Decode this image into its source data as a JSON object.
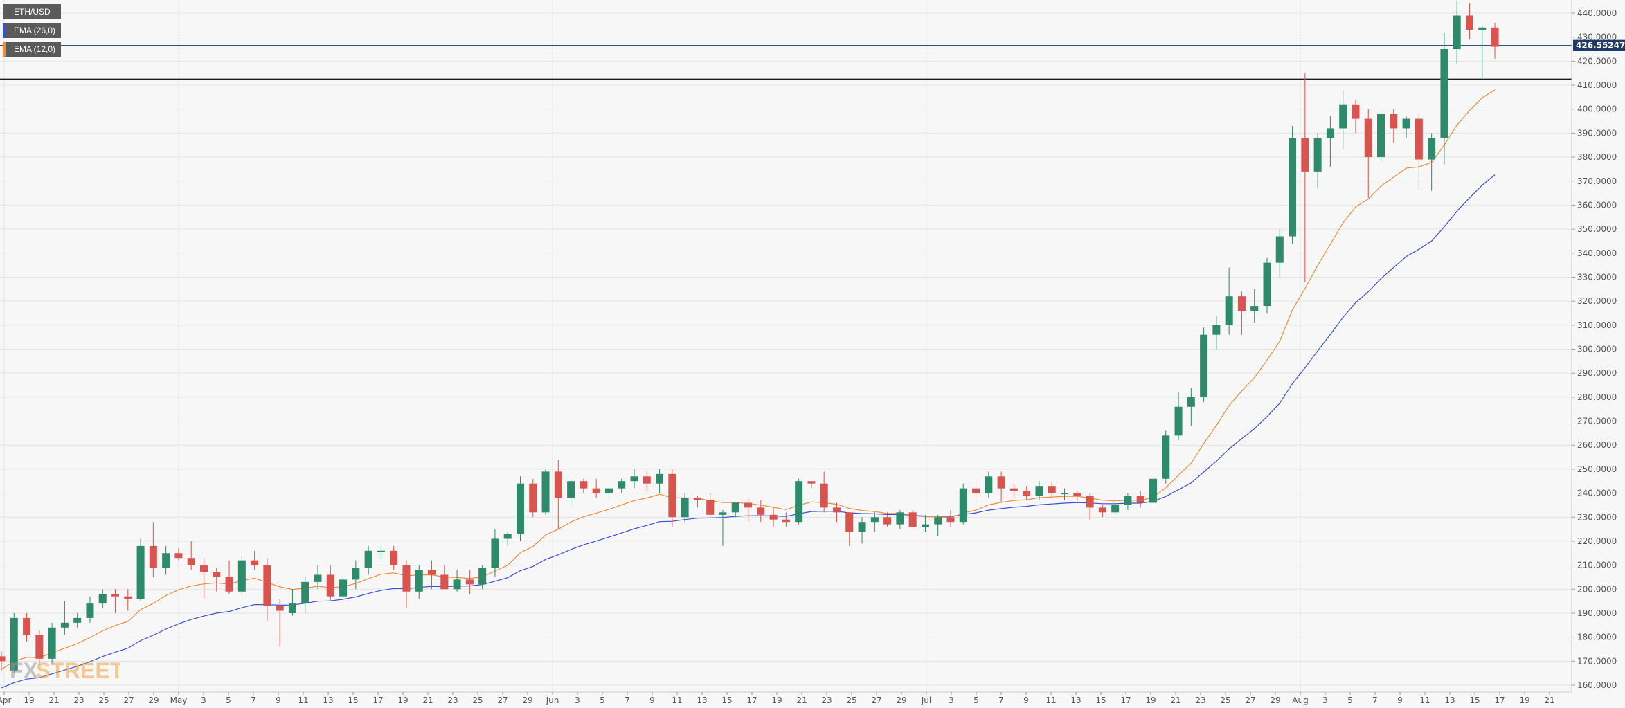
{
  "legend": {
    "symbol": "ETH/USD",
    "ema_slow": "EMA (26,0)",
    "ema_fast": "EMA (12,0)"
  },
  "colors": {
    "up": "#2d8a6b",
    "down": "#d9534f",
    "ema_slow": "#3b4fd8",
    "ema_fast": "#f08c3c",
    "current_price": "#1f3a66",
    "support": "#1c1c1c"
  },
  "current_price_label": "426.55247",
  "logo": {
    "text_fx": "FX",
    "text_street": "STREET"
  },
  "chart_data": {
    "type": "candlestick",
    "y_axis": {
      "ticks": [
        "160.0000",
        "170.0000",
        "180.0000",
        "190.0000",
        "200.0000",
        "210.0000",
        "220.0000",
        "230.0000",
        "240.0000",
        "250.0000",
        "260.0000",
        "270.0000",
        "280.0000",
        "290.0000",
        "300.0000",
        "310.0000",
        "320.0000",
        "330.0000",
        "340.0000",
        "350.0000",
        "360.0000",
        "370.0000",
        "380.0000",
        "390.0000",
        "400.0000",
        "410.0000",
        "420.0000",
        "430.0000",
        "440.0000"
      ],
      "min": 160,
      "max": 440,
      "position": "right"
    },
    "x_axis": {
      "labels": [
        "Apr",
        "19",
        "21",
        "23",
        "25",
        "27",
        "29",
        "May",
        "3",
        "5",
        "7",
        "9",
        "11",
        "13",
        "15",
        "17",
        "19",
        "21",
        "23",
        "25",
        "27",
        "29",
        "Jun",
        "3",
        "5",
        "7",
        "9",
        "11",
        "13",
        "15",
        "17",
        "19",
        "21",
        "23",
        "25",
        "27",
        "29",
        "Jul",
        "3",
        "5",
        "7",
        "9",
        "11",
        "13",
        "15",
        "17",
        "19",
        "21",
        "23",
        "25",
        "27",
        "29",
        "Aug",
        "3",
        "5",
        "7",
        "9",
        "11",
        "13",
        "15",
        "17",
        "19",
        "21"
      ]
    },
    "current_price": 426.55,
    "support_level": 412.5,
    "candles": [
      {
        "o": 172,
        "h": 174,
        "l": 166,
        "c": 170
      },
      {
        "o": 166,
        "h": 190,
        "l": 165,
        "c": 188
      },
      {
        "o": 188,
        "h": 190,
        "l": 178,
        "c": 181
      },
      {
        "o": 181,
        "h": 183,
        "l": 168,
        "c": 171
      },
      {
        "o": 171,
        "h": 186,
        "l": 169,
        "c": 184
      },
      {
        "o": 184,
        "h": 195,
        "l": 181,
        "c": 186
      },
      {
        "o": 186,
        "h": 190,
        "l": 184,
        "c": 188
      },
      {
        "o": 188,
        "h": 197,
        "l": 186,
        "c": 194
      },
      {
        "o": 194,
        "h": 200,
        "l": 192,
        "c": 198
      },
      {
        "o": 198,
        "h": 200,
        "l": 190,
        "c": 197
      },
      {
        "o": 197,
        "h": 200,
        "l": 191,
        "c": 196
      },
      {
        "o": 196,
        "h": 221,
        "l": 195,
        "c": 218
      },
      {
        "o": 218,
        "h": 228,
        "l": 205,
        "c": 209
      },
      {
        "o": 209,
        "h": 218,
        "l": 206,
        "c": 215
      },
      {
        "o": 215,
        "h": 217,
        "l": 212,
        "c": 213
      },
      {
        "o": 213,
        "h": 220,
        "l": 208,
        "c": 210
      },
      {
        "o": 210,
        "h": 213,
        "l": 196,
        "c": 207
      },
      {
        "o": 207,
        "h": 209,
        "l": 199,
        "c": 205
      },
      {
        "o": 205,
        "h": 212,
        "l": 198,
        "c": 199
      },
      {
        "o": 199,
        "h": 214,
        "l": 198,
        "c": 212
      },
      {
        "o": 212,
        "h": 216,
        "l": 208,
        "c": 210
      },
      {
        "o": 210,
        "h": 213,
        "l": 187,
        "c": 193
      },
      {
        "o": 193,
        "h": 196,
        "l": 176,
        "c": 191
      },
      {
        "o": 190,
        "h": 200,
        "l": 189,
        "c": 194
      },
      {
        "o": 194,
        "h": 205,
        "l": 190,
        "c": 203
      },
      {
        "o": 203,
        "h": 210,
        "l": 200,
        "c": 206
      },
      {
        "o": 206,
        "h": 210,
        "l": 195,
        "c": 197
      },
      {
        "o": 197,
        "h": 205,
        "l": 195,
        "c": 204
      },
      {
        "o": 204,
        "h": 212,
        "l": 200,
        "c": 209
      },
      {
        "o": 209,
        "h": 218,
        "l": 206,
        "c": 216
      },
      {
        "o": 216,
        "h": 218,
        "l": 212,
        "c": 216
      },
      {
        "o": 216,
        "h": 218,
        "l": 208,
        "c": 210
      },
      {
        "o": 210,
        "h": 212,
        "l": 192,
        "c": 199
      },
      {
        "o": 199,
        "h": 210,
        "l": 196,
        "c": 208
      },
      {
        "o": 208,
        "h": 212,
        "l": 200,
        "c": 206
      },
      {
        "o": 206,
        "h": 210,
        "l": 200,
        "c": 200
      },
      {
        "o": 200,
        "h": 208,
        "l": 199,
        "c": 204
      },
      {
        "o": 204,
        "h": 208,
        "l": 198,
        "c": 202
      },
      {
        "o": 202,
        "h": 210,
        "l": 200,
        "c": 209
      },
      {
        "o": 209,
        "h": 225,
        "l": 205,
        "c": 221
      },
      {
        "o": 221,
        "h": 224,
        "l": 218,
        "c": 223
      },
      {
        "o": 223,
        "h": 247,
        "l": 220,
        "c": 244
      },
      {
        "o": 244,
        "h": 246,
        "l": 230,
        "c": 232
      },
      {
        "o": 232,
        "h": 250,
        "l": 231,
        "c": 249
      },
      {
        "o": 249,
        "h": 254,
        "l": 225,
        "c": 238
      },
      {
        "o": 238,
        "h": 246,
        "l": 234,
        "c": 245
      },
      {
        "o": 245,
        "h": 246,
        "l": 240,
        "c": 242
      },
      {
        "o": 242,
        "h": 246,
        "l": 238,
        "c": 240
      },
      {
        "o": 240,
        "h": 244,
        "l": 236,
        "c": 242
      },
      {
        "o": 242,
        "h": 246,
        "l": 240,
        "c": 245
      },
      {
        "o": 245,
        "h": 250,
        "l": 242,
        "c": 247
      },
      {
        "o": 247,
        "h": 249,
        "l": 241,
        "c": 244
      },
      {
        "o": 244,
        "h": 250,
        "l": 240,
        "c": 248
      },
      {
        "o": 248,
        "h": 250,
        "l": 226,
        "c": 230
      },
      {
        "o": 230,
        "h": 240,
        "l": 228,
        "c": 238
      },
      {
        "o": 238,
        "h": 239,
        "l": 234,
        "c": 237
      },
      {
        "o": 237,
        "h": 240,
        "l": 230,
        "c": 231
      },
      {
        "o": 231,
        "h": 233,
        "l": 218,
        "c": 232
      },
      {
        "o": 232,
        "h": 236,
        "l": 230,
        "c": 236
      },
      {
        "o": 236,
        "h": 238,
        "l": 228,
        "c": 234
      },
      {
        "o": 234,
        "h": 237,
        "l": 228,
        "c": 231
      },
      {
        "o": 231,
        "h": 234,
        "l": 226,
        "c": 229
      },
      {
        "o": 229,
        "h": 232,
        "l": 226,
        "c": 228
      },
      {
        "o": 228,
        "h": 246,
        "l": 227,
        "c": 245
      },
      {
        "o": 245,
        "h": 245,
        "l": 242,
        "c": 244
      },
      {
        "o": 244,
        "h": 249,
        "l": 232,
        "c": 234
      },
      {
        "o": 234,
        "h": 236,
        "l": 228,
        "c": 232
      },
      {
        "o": 232,
        "h": 232,
        "l": 218,
        "c": 224
      },
      {
        "o": 224,
        "h": 230,
        "l": 219,
        "c": 228
      },
      {
        "o": 228,
        "h": 232,
        "l": 224,
        "c": 230
      },
      {
        "o": 230,
        "h": 232,
        "l": 226,
        "c": 227
      },
      {
        "o": 227,
        "h": 233,
        "l": 225,
        "c": 232
      },
      {
        "o": 232,
        "h": 233,
        "l": 226,
        "c": 226
      },
      {
        "o": 226,
        "h": 231,
        "l": 224,
        "c": 227
      },
      {
        "o": 227,
        "h": 231,
        "l": 222,
        "c": 230
      },
      {
        "o": 230,
        "h": 233,
        "l": 226,
        "c": 228
      },
      {
        "o": 228,
        "h": 244,
        "l": 227,
        "c": 242
      },
      {
        "o": 242,
        "h": 246,
        "l": 236,
        "c": 240
      },
      {
        "o": 240,
        "h": 249,
        "l": 238,
        "c": 247
      },
      {
        "o": 247,
        "h": 249,
        "l": 236,
        "c": 242
      },
      {
        "o": 242,
        "h": 244,
        "l": 238,
        "c": 241
      },
      {
        "o": 241,
        "h": 243,
        "l": 237,
        "c": 239
      },
      {
        "o": 239,
        "h": 245,
        "l": 237,
        "c": 243
      },
      {
        "o": 243,
        "h": 245,
        "l": 238,
        "c": 240
      },
      {
        "o": 240,
        "h": 242,
        "l": 237,
        "c": 240
      },
      {
        "o": 240,
        "h": 241,
        "l": 236,
        "c": 239
      },
      {
        "o": 239,
        "h": 240,
        "l": 229,
        "c": 234
      },
      {
        "o": 234,
        "h": 235,
        "l": 230,
        "c": 232
      },
      {
        "o": 232,
        "h": 236,
        "l": 231,
        "c": 235
      },
      {
        "o": 235,
        "h": 240,
        "l": 233,
        "c": 239
      },
      {
        "o": 239,
        "h": 241,
        "l": 234,
        "c": 236
      },
      {
        "o": 236,
        "h": 247,
        "l": 235,
        "c": 246
      },
      {
        "o": 246,
        "h": 266,
        "l": 244,
        "c": 264
      },
      {
        "o": 264,
        "h": 282,
        "l": 262,
        "c": 276
      },
      {
        "o": 276,
        "h": 284,
        "l": 268,
        "c": 280
      },
      {
        "o": 280,
        "h": 309,
        "l": 278,
        "c": 306
      },
      {
        "o": 306,
        "h": 314,
        "l": 300,
        "c": 310
      },
      {
        "o": 310,
        "h": 334,
        "l": 306,
        "c": 322
      },
      {
        "o": 322,
        "h": 324,
        "l": 306,
        "c": 316
      },
      {
        "o": 316,
        "h": 325,
        "l": 311,
        "c": 318
      },
      {
        "o": 318,
        "h": 338,
        "l": 315,
        "c": 336
      },
      {
        "o": 336,
        "h": 350,
        "l": 330,
        "c": 347
      },
      {
        "o": 347,
        "h": 393,
        "l": 344,
        "c": 388
      },
      {
        "o": 388,
        "h": 415,
        "l": 328,
        "c": 374
      },
      {
        "o": 374,
        "h": 390,
        "l": 367,
        "c": 388
      },
      {
        "o": 388,
        "h": 397,
        "l": 376,
        "c": 392
      },
      {
        "o": 392,
        "h": 408,
        "l": 383,
        "c": 402
      },
      {
        "o": 402,
        "h": 404,
        "l": 390,
        "c": 396
      },
      {
        "o": 396,
        "h": 400,
        "l": 363,
        "c": 380
      },
      {
        "o": 380,
        "h": 399,
        "l": 378,
        "c": 398
      },
      {
        "o": 398,
        "h": 400,
        "l": 386,
        "c": 392
      },
      {
        "o": 392,
        "h": 397,
        "l": 388,
        "c": 396
      },
      {
        "o": 396,
        "h": 398,
        "l": 366,
        "c": 379
      },
      {
        "o": 379,
        "h": 390,
        "l": 366,
        "c": 388
      },
      {
        "o": 388,
        "h": 432,
        "l": 377,
        "c": 425
      },
      {
        "o": 425,
        "h": 445,
        "l": 419,
        "c": 439
      },
      {
        "o": 439,
        "h": 444,
        "l": 429,
        "c": 433
      },
      {
        "o": 433,
        "h": 435,
        "l": 413,
        "c": 434
      },
      {
        "o": 434,
        "h": 436,
        "l": 421,
        "c": 426
      }
    ]
  }
}
